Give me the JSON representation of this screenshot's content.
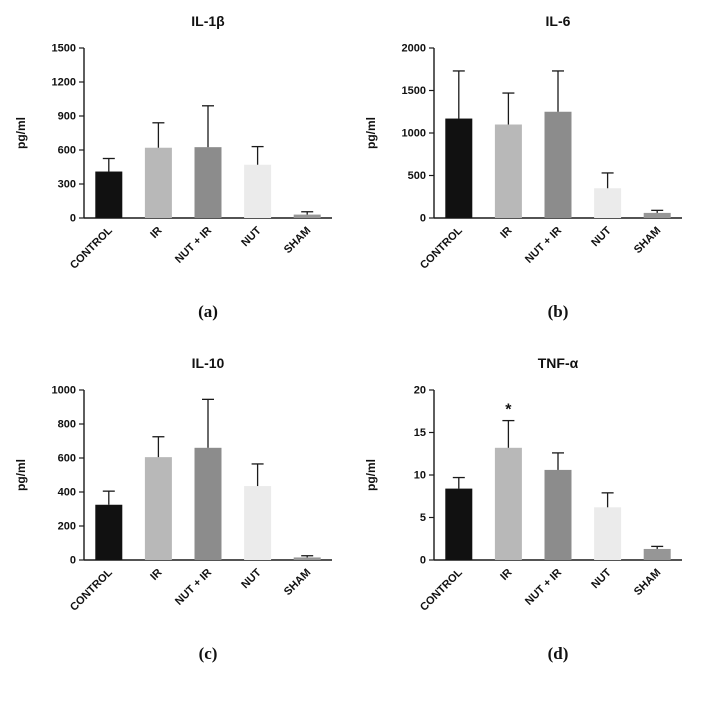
{
  "style": {
    "background": "#ffffff",
    "axis_color": "#1a1a1a",
    "error_bar_color": "#1a1a1a",
    "text_color": "#111111",
    "bar_colors": [
      "#111111",
      "#b8b8b8",
      "#8c8c8c",
      "#ebebeb",
      "#969696"
    ]
  },
  "chart_data": [
    {
      "type": "bar",
      "panel_label": "(a)",
      "title": "IL-1β",
      "xlabel": "",
      "ylabel": "pg/ml",
      "ylim": [
        0,
        1500
      ],
      "yticks": [
        0,
        300,
        600,
        900,
        1200,
        1500
      ],
      "grid": false,
      "legend": "none",
      "categories": [
        "CONTROL",
        "IR",
        "NUT + IR",
        "NUT",
        "SHAM"
      ],
      "values": [
        410,
        620,
        625,
        470,
        30
      ],
      "errors": [
        115,
        220,
        365,
        160,
        25
      ],
      "annotations": []
    },
    {
      "type": "bar",
      "panel_label": "(b)",
      "title": "IL-6",
      "xlabel": "",
      "ylabel": "pg/ml",
      "ylim": [
        0,
        2000
      ],
      "yticks": [
        0,
        500,
        1000,
        1500,
        2000
      ],
      "grid": false,
      "legend": "none",
      "categories": [
        "CONTROL",
        "IR",
        "NUT + IR",
        "NUT",
        "SHAM"
      ],
      "values": [
        1170,
        1100,
        1250,
        350,
        60
      ],
      "errors": [
        560,
        370,
        480,
        180,
        30
      ],
      "annotations": []
    },
    {
      "type": "bar",
      "panel_label": "(c)",
      "title": "IL-10",
      "xlabel": "",
      "ylabel": "pg/ml",
      "ylim": [
        0,
        1000
      ],
      "yticks": [
        0,
        200,
        400,
        600,
        800,
        1000
      ],
      "grid": false,
      "legend": "none",
      "categories": [
        "CONTROL",
        "IR",
        "NUT + IR",
        "NUT",
        "SHAM"
      ],
      "values": [
        325,
        605,
        660,
        435,
        15
      ],
      "errors": [
        80,
        120,
        285,
        130,
        10
      ],
      "annotations": []
    },
    {
      "type": "bar",
      "panel_label": "(d)",
      "title": "TNF-α",
      "xlabel": "",
      "ylabel": "pg/ml",
      "ylim": [
        0,
        20
      ],
      "yticks": [
        0,
        5,
        10,
        15,
        20
      ],
      "grid": false,
      "legend": "none",
      "categories": [
        "CONTROL",
        "IR",
        "NUT + IR",
        "NUT",
        "SHAM"
      ],
      "values": [
        8.4,
        13.2,
        10.6,
        6.2,
        1.3
      ],
      "errors": [
        1.3,
        3.2,
        2.0,
        1.7,
        0.3
      ],
      "annotations": [
        {
          "text": "*",
          "category_index": 1
        }
      ]
    }
  ]
}
